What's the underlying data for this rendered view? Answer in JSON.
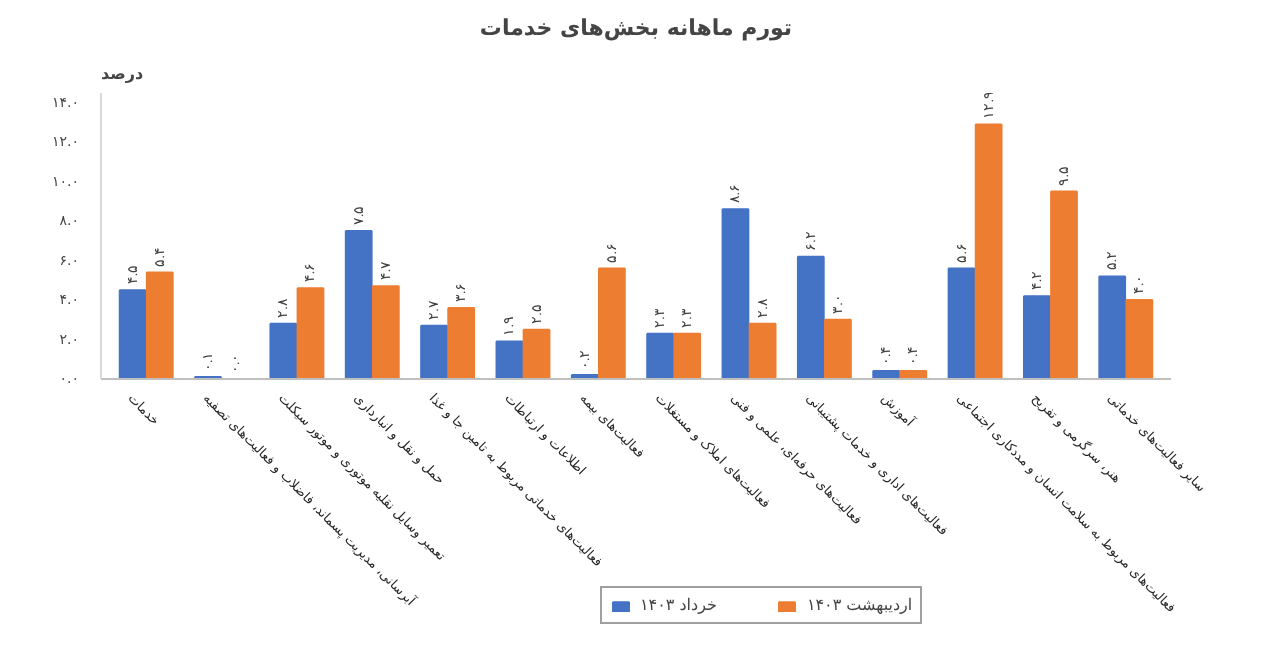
{
  "chart_data": {
    "type": "bar",
    "title": "تورم ماهانه بخش‌های خدمات",
    "ylabel": "درصد",
    "categories": [
      "خدمات",
      "آبرسانی، مدیریت پسماند، فاضلاب و فعالیت‌های تصفیه",
      "تعمیر وسایل نقلیه موتوری و موتور سیکلت",
      "حمل و نقل و انبارداری",
      "فعالیت‌های خدماتی مربوط به تامین جا و غذا",
      "اطلاعات و ارتباطات",
      "فعالیت‌های بیمه",
      "فعالیت‌های املاک و مستغلات",
      "فعالیت‌های حرفه‌ای، علمی و فنی",
      "فعالیت‌های اداری و خدمات پشتیبانی",
      "آموزش",
      "فعالیت‌های مربوط به سلامت انسان و مددکاری اجتماعی",
      "هنر، سرگرمی و تفریح",
      "سایر فعالیت‌های خدماتی"
    ],
    "series": [
      {
        "name": "خرداد ۱۴۰۳",
        "color": "#4472c4",
        "values": [
          4.5,
          0.1,
          2.8,
          7.5,
          2.7,
          1.9,
          0.2,
          2.3,
          8.6,
          6.2,
          0.4,
          5.6,
          4.2,
          5.2
        ],
        "value_labels": [
          "۴.۵",
          "۰.۱",
          "۲.۸",
          "۷.۵",
          "۲.۷",
          "۱.۹",
          "۰.۲",
          "۲.۳",
          "۸.۶",
          "۶.۲",
          "۰.۴",
          "۵.۶",
          "۴.۲",
          "۵.۲"
        ]
      },
      {
        "name": "اردیبهشت ۱۴۰۳",
        "color": "#ed7d31",
        "values": [
          5.4,
          0.0,
          4.6,
          4.7,
          3.6,
          2.5,
          5.6,
          2.3,
          2.8,
          3.0,
          0.4,
          12.9,
          9.5,
          4.0
        ],
        "value_labels": [
          "۵.۴",
          "۰.۰",
          "۴.۶",
          "۴.۷",
          "۳.۶",
          "۲.۵",
          "۵.۶",
          "۲.۳",
          "۲.۸",
          "۳.۰",
          "۰.۴",
          "۱۲.۹",
          "۹.۵",
          "۴.۰"
        ]
      }
    ],
    "ylim": [
      0,
      14.5
    ],
    "yticks": [
      {
        "value": 0,
        "label": "۰.۰"
      },
      {
        "value": 2,
        "label": "۲.۰"
      },
      {
        "value": 4,
        "label": "۴.۰"
      },
      {
        "value": 6,
        "label": "۶.۰"
      },
      {
        "value": 8,
        "label": "۸.۰"
      },
      {
        "value": 10,
        "label": "۱۰.۰"
      },
      {
        "value": 12,
        "label": "۱۲.۰"
      },
      {
        "value": 14,
        "label": "۱۴.۰"
      }
    ],
    "legend": "bottom",
    "grid": false
  }
}
